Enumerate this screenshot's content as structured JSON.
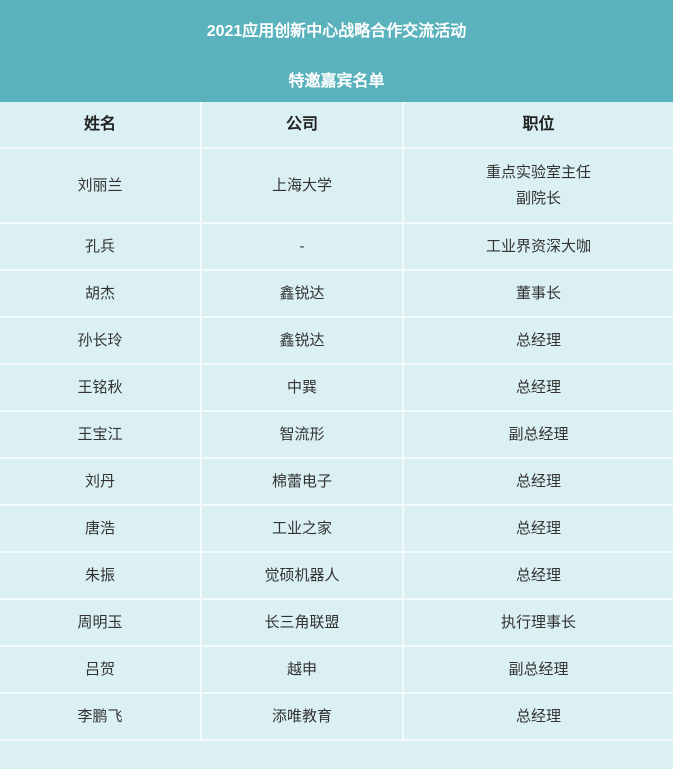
{
  "header": {
    "title": "2021应用创新中心战略合作交流活动",
    "subtitle": "特邀嘉宾名单"
  },
  "colors": {
    "header_bg": "#5ab3bc",
    "table_bg": "#daf0f3"
  },
  "table": {
    "columns": [
      "姓名",
      "公司",
      "职位"
    ],
    "rows": [
      {
        "name": "刘丽兰",
        "company": "上海大学",
        "title": "重点实验室主任",
        "title2": "副院长"
      },
      {
        "name": "孔兵",
        "company": "-",
        "title": "工业界资深大咖"
      },
      {
        "name": "胡杰",
        "company": "鑫锐达",
        "title": "董事长"
      },
      {
        "name": "孙长玲",
        "company": "鑫锐达",
        "title": "总经理"
      },
      {
        "name": "王铭秋",
        "company": "中巽",
        "title": "总经理"
      },
      {
        "name": "王宝江",
        "company": "智流形",
        "title": "副总经理"
      },
      {
        "name": "刘丹",
        "company": "棉蕾电子",
        "title": "总经理"
      },
      {
        "name": "唐浩",
        "company": "工业之家",
        "title": "总经理"
      },
      {
        "name": "朱振",
        "company": "觉硕机器人",
        "title": "总经理"
      },
      {
        "name": "周明玉",
        "company": "长三角联盟",
        "title": "执行理事长"
      },
      {
        "name": "吕贺",
        "company": "越申",
        "title": "副总经理"
      },
      {
        "name": "李鹏飞",
        "company": "添唯教育",
        "title": "总经理"
      }
    ]
  }
}
